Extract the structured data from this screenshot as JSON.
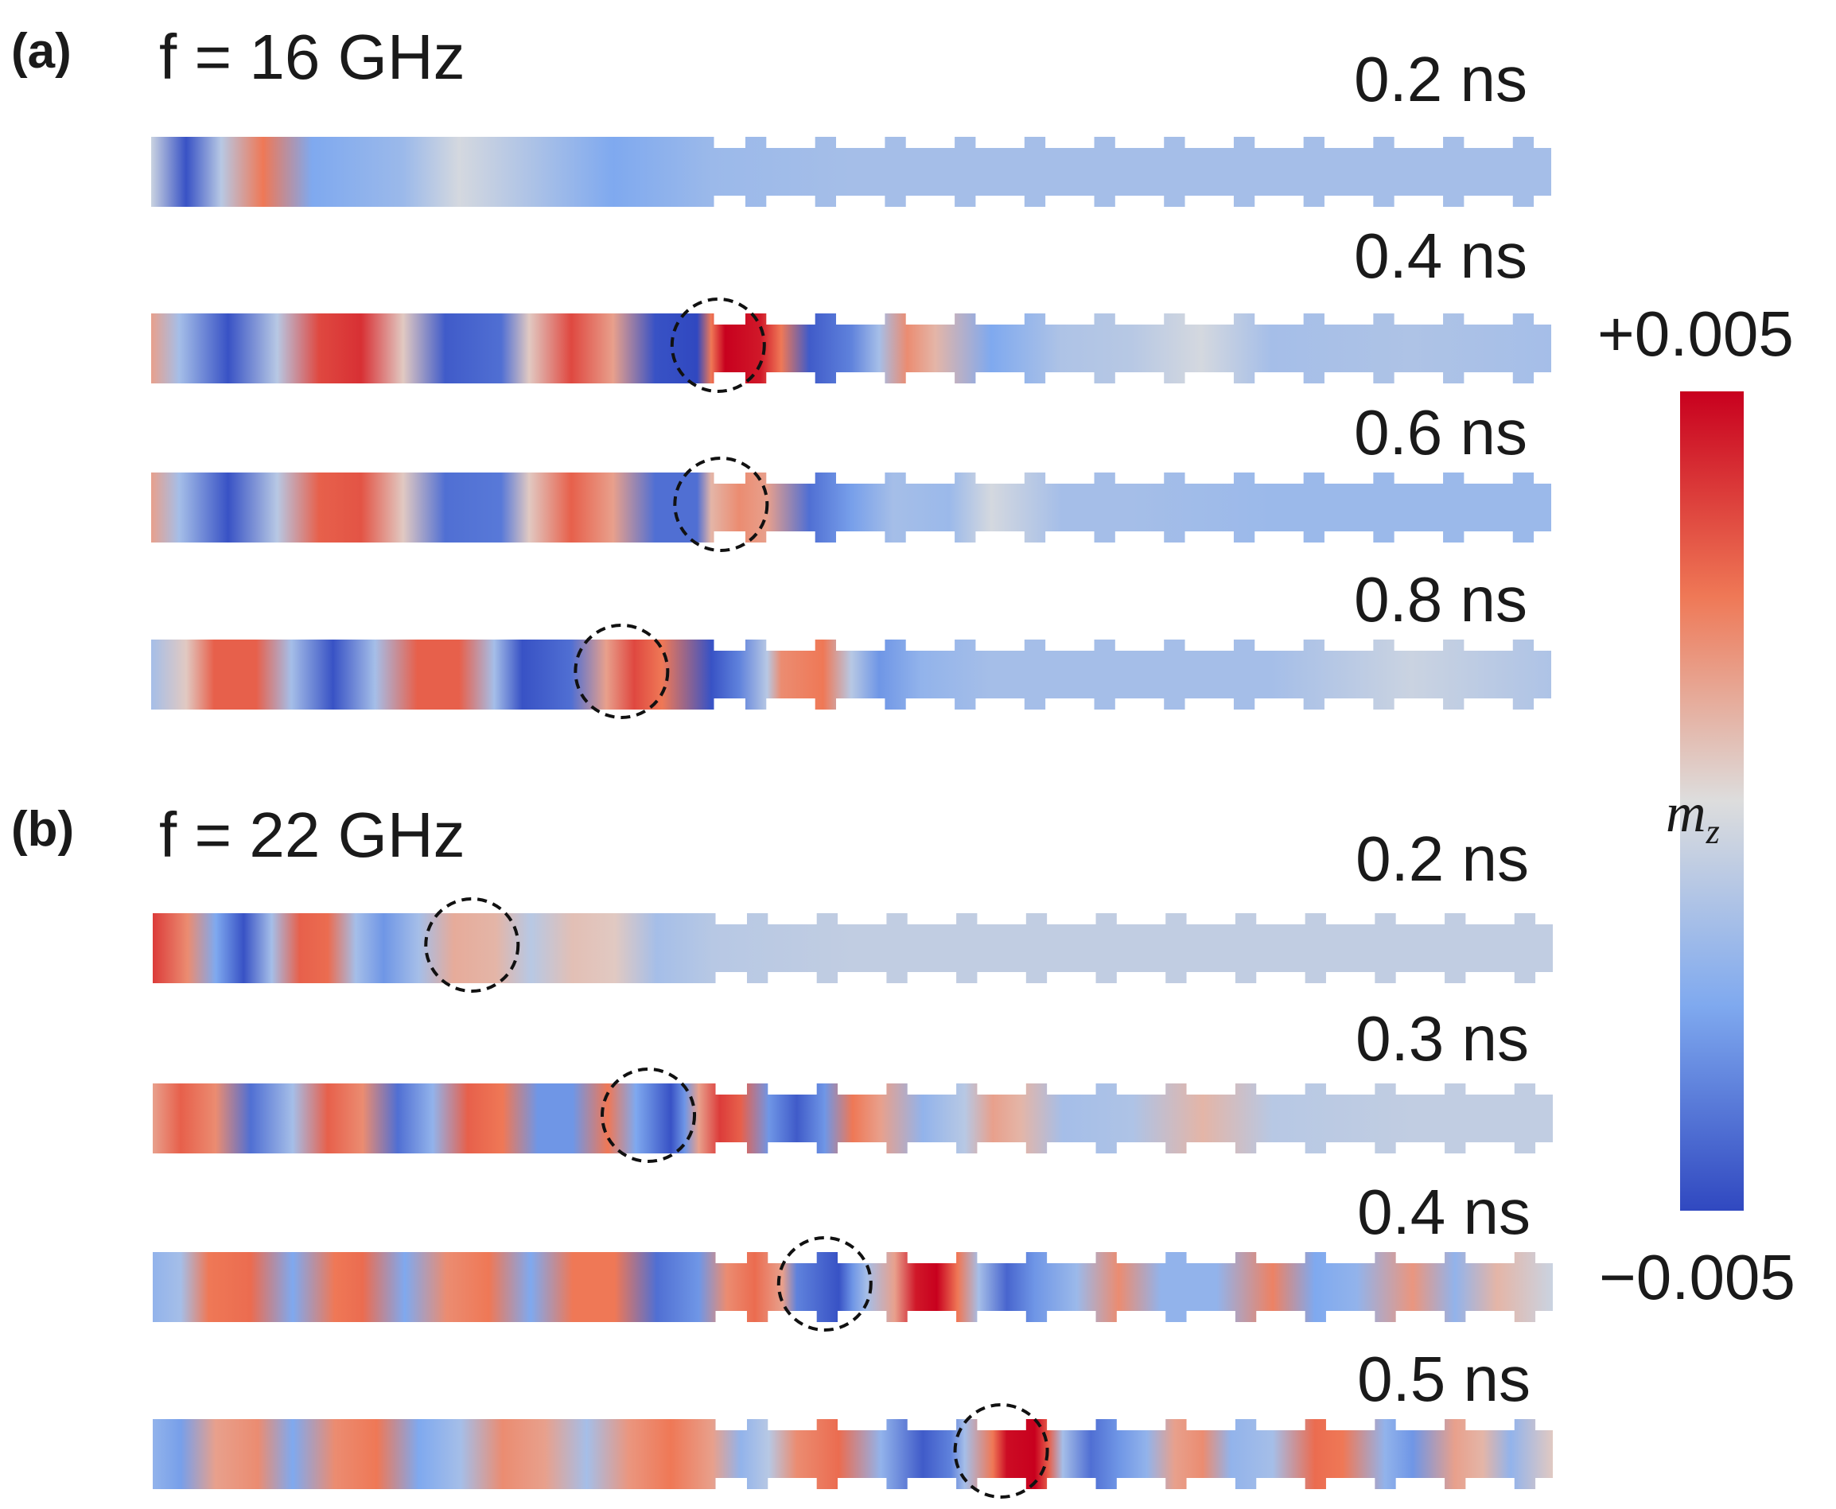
{
  "panels": [
    {
      "letter": "(a)",
      "frequency_label": "f = 16 GHz",
      "rows": [
        {
          "time": "0.2 ns",
          "mz_profile": [
            [
              0,
              -0.1
            ],
            [
              0.025,
              -0.95
            ],
            [
              0.05,
              -0.2
            ],
            [
              0.08,
              0.5
            ],
            [
              0.115,
              -0.5
            ],
            [
              0.18,
              -0.35
            ],
            [
              0.22,
              -0.05
            ],
            [
              0.27,
              -0.25
            ],
            [
              0.33,
              -0.5
            ],
            [
              0.4,
              -0.35
            ],
            [
              0.5,
              -0.3
            ],
            [
              1,
              -0.3
            ]
          ],
          "highlight": null
        },
        {
          "time": "0.4 ns",
          "mz_profile": [
            [
              0,
              0.3
            ],
            [
              0.02,
              -0.3
            ],
            [
              0.055,
              -0.95
            ],
            [
              0.09,
              -0.2
            ],
            [
              0.12,
              0.7
            ],
            [
              0.15,
              0.8
            ],
            [
              0.18,
              0.1
            ],
            [
              0.21,
              -0.9
            ],
            [
              0.25,
              -0.8
            ],
            [
              0.27,
              0.1
            ],
            [
              0.3,
              0.7
            ],
            [
              0.33,
              0.3
            ],
            [
              0.36,
              -0.95
            ],
            [
              0.39,
              -1
            ],
            [
              0.4,
              0.5
            ],
            [
              0.41,
              1
            ],
            [
              0.435,
              0.9
            ],
            [
              0.45,
              0.5
            ],
            [
              0.47,
              -0.9
            ],
            [
              0.5,
              -0.7
            ],
            [
              0.52,
              -0.3
            ],
            [
              0.54,
              0.4
            ],
            [
              0.56,
              0.2
            ],
            [
              0.6,
              -0.5
            ],
            [
              0.65,
              -0.25
            ],
            [
              0.7,
              -0.2
            ],
            [
              0.75,
              -0.05
            ],
            [
              0.8,
              -0.3
            ],
            [
              0.9,
              -0.25
            ],
            [
              1,
              -0.3
            ]
          ],
          "highlight": 0.405
        },
        {
          "time": "0.6 ns",
          "mz_profile": [
            [
              0,
              0.3
            ],
            [
              0.02,
              -0.3
            ],
            [
              0.055,
              -0.95
            ],
            [
              0.09,
              -0.2
            ],
            [
              0.12,
              0.6
            ],
            [
              0.15,
              0.65
            ],
            [
              0.18,
              0.1
            ],
            [
              0.21,
              -0.8
            ],
            [
              0.25,
              -0.75
            ],
            [
              0.27,
              0.1
            ],
            [
              0.3,
              0.6
            ],
            [
              0.33,
              0.3
            ],
            [
              0.36,
              -0.8
            ],
            [
              0.39,
              -0.8
            ],
            [
              0.4,
              0.2
            ],
            [
              0.42,
              0.4
            ],
            [
              0.44,
              0.3
            ],
            [
              0.47,
              -0.8
            ],
            [
              0.5,
              -0.55
            ],
            [
              0.53,
              -0.3
            ],
            [
              0.57,
              -0.35
            ],
            [
              0.6,
              -0.05
            ],
            [
              0.65,
              -0.3
            ],
            [
              0.7,
              -0.3
            ],
            [
              0.8,
              -0.35
            ],
            [
              1,
              -0.35
            ]
          ],
          "highlight": 0.407
        },
        {
          "time": "0.8 ns",
          "mz_profile": [
            [
              0,
              -0.3
            ],
            [
              0.025,
              0.1
            ],
            [
              0.045,
              0.6
            ],
            [
              0.075,
              0.6
            ],
            [
              0.1,
              -0.3
            ],
            [
              0.13,
              -0.95
            ],
            [
              0.16,
              -0.3
            ],
            [
              0.19,
              0.6
            ],
            [
              0.22,
              0.6
            ],
            [
              0.245,
              -0.3
            ],
            [
              0.265,
              -0.95
            ],
            [
              0.3,
              -0.8
            ],
            [
              0.325,
              0.3
            ],
            [
              0.345,
              0.7
            ],
            [
              0.365,
              0.5
            ],
            [
              0.4,
              -0.95
            ],
            [
              0.42,
              -0.7
            ],
            [
              0.44,
              -0.2
            ],
            [
              0.45,
              0.4
            ],
            [
              0.48,
              0.5
            ],
            [
              0.5,
              -0.2
            ],
            [
              0.52,
              -0.6
            ],
            [
              0.55,
              -0.4
            ],
            [
              0.6,
              -0.3
            ],
            [
              0.7,
              -0.3
            ],
            [
              0.8,
              -0.3
            ],
            [
              0.9,
              -0.1
            ],
            [
              1,
              -0.25
            ]
          ],
          "highlight": 0.336
        }
      ]
    },
    {
      "letter": "(b)",
      "frequency_label": "f = 22 GHz",
      "rows": [
        {
          "time": "0.2 ns",
          "mz_profile": [
            [
              0,
              0.75
            ],
            [
              0.025,
              0.4
            ],
            [
              0.045,
              -0.5
            ],
            [
              0.065,
              -0.95
            ],
            [
              0.085,
              -0.3
            ],
            [
              0.105,
              0.6
            ],
            [
              0.125,
              0.55
            ],
            [
              0.145,
              -0.3
            ],
            [
              0.165,
              -0.6
            ],
            [
              0.19,
              -0.3
            ],
            [
              0.215,
              0.25
            ],
            [
              0.245,
              0.2
            ],
            [
              0.27,
              -0.2
            ],
            [
              0.3,
              0.15
            ],
            [
              0.33,
              0.1
            ],
            [
              0.36,
              -0.3
            ],
            [
              0.4,
              -0.2
            ],
            [
              0.5,
              -0.15
            ],
            [
              1,
              -0.15
            ]
          ],
          "highlight": 0.228
        },
        {
          "time": "0.3 ns",
          "mz_profile": [
            [
              0,
              0.3
            ],
            [
              0.02,
              0.6
            ],
            [
              0.045,
              0.4
            ],
            [
              0.07,
              -0.8
            ],
            [
              0.1,
              -0.3
            ],
            [
              0.125,
              0.6
            ],
            [
              0.15,
              0.4
            ],
            [
              0.175,
              -0.8
            ],
            [
              0.2,
              -0.4
            ],
            [
              0.225,
              0.6
            ],
            [
              0.25,
              0.5
            ],
            [
              0.275,
              -0.6
            ],
            [
              0.3,
              -0.6
            ],
            [
              0.325,
              0.5
            ],
            [
              0.345,
              -0.5
            ],
            [
              0.37,
              -0.95
            ],
            [
              0.38,
              -0.6
            ],
            [
              0.39,
              0.3
            ],
            [
              0.405,
              0.75
            ],
            [
              0.42,
              0.6
            ],
            [
              0.44,
              -0.6
            ],
            [
              0.46,
              -0.9
            ],
            [
              0.48,
              -0.6
            ],
            [
              0.5,
              0.5
            ],
            [
              0.52,
              0.3
            ],
            [
              0.55,
              -0.4
            ],
            [
              0.58,
              -0.2
            ],
            [
              0.6,
              0.3
            ],
            [
              0.62,
              0.2
            ],
            [
              0.65,
              -0.3
            ],
            [
              0.7,
              -0.25
            ],
            [
              0.75,
              0.2
            ],
            [
              0.8,
              -0.2
            ],
            [
              0.9,
              -0.15
            ],
            [
              1,
              -0.15
            ]
          ],
          "highlight": 0.354
        },
        {
          "time": "0.4 ns",
          "mz_profile": [
            [
              0,
              -0.4
            ],
            [
              0.02,
              -0.3
            ],
            [
              0.04,
              0.5
            ],
            [
              0.07,
              0.55
            ],
            [
              0.1,
              -0.5
            ],
            [
              0.13,
              0.5
            ],
            [
              0.15,
              0.55
            ],
            [
              0.18,
              -0.5
            ],
            [
              0.21,
              0.4
            ],
            [
              0.24,
              0.5
            ],
            [
              0.27,
              -0.5
            ],
            [
              0.3,
              0.5
            ],
            [
              0.33,
              0.5
            ],
            [
              0.36,
              -0.8
            ],
            [
              0.39,
              -0.6
            ],
            [
              0.41,
              0.4
            ],
            [
              0.43,
              0.55
            ],
            [
              0.45,
              0.3
            ],
            [
              0.46,
              -0.7
            ],
            [
              0.49,
              -0.95
            ],
            [
              0.5,
              -0.6
            ],
            [
              0.51,
              -0.3
            ],
            [
              0.53,
              0.3
            ],
            [
              0.545,
              0.9
            ],
            [
              0.56,
              1
            ],
            [
              0.575,
              0.5
            ],
            [
              0.59,
              -0.3
            ],
            [
              0.61,
              -0.85
            ],
            [
              0.63,
              -0.6
            ],
            [
              0.66,
              -0.35
            ],
            [
              0.69,
              0.4
            ],
            [
              0.72,
              -0.4
            ],
            [
              0.76,
              -0.4
            ],
            [
              0.8,
              0.45
            ],
            [
              0.83,
              -0.5
            ],
            [
              0.86,
              -0.4
            ],
            [
              0.9,
              0.35
            ],
            [
              0.93,
              -0.4
            ],
            [
              0.96,
              0.2
            ],
            [
              1,
              -0.1
            ]
          ],
          "highlight": 0.48
        },
        {
          "time": "0.5 ns",
          "mz_profile": [
            [
              0,
              -0.4
            ],
            [
              0.02,
              -0.55
            ],
            [
              0.045,
              0.3
            ],
            [
              0.075,
              0.4
            ],
            [
              0.1,
              -0.5
            ],
            [
              0.13,
              0.4
            ],
            [
              0.16,
              0.5
            ],
            [
              0.19,
              -0.5
            ],
            [
              0.22,
              -0.3
            ],
            [
              0.25,
              0.4
            ],
            [
              0.28,
              0.3
            ],
            [
              0.31,
              -0.3
            ],
            [
              0.34,
              0.35
            ],
            [
              0.37,
              0.5
            ],
            [
              0.4,
              0.3
            ],
            [
              0.42,
              -0.4
            ],
            [
              0.44,
              -0.2
            ],
            [
              0.46,
              0.4
            ],
            [
              0.49,
              0.55
            ],
            [
              0.52,
              -0.4
            ],
            [
              0.55,
              -0.9
            ],
            [
              0.57,
              -0.7
            ],
            [
              0.58,
              -0.3
            ],
            [
              0.6,
              0.5
            ],
            [
              0.61,
              0.95
            ],
            [
              0.63,
              1
            ],
            [
              0.64,
              0.6
            ],
            [
              0.65,
              -0.3
            ],
            [
              0.67,
              -0.8
            ],
            [
              0.69,
              -0.6
            ],
            [
              0.71,
              -0.4
            ],
            [
              0.73,
              0.3
            ],
            [
              0.75,
              0.4
            ],
            [
              0.77,
              -0.4
            ],
            [
              0.8,
              -0.3
            ],
            [
              0.83,
              0.55
            ],
            [
              0.85,
              0.5
            ],
            [
              0.88,
              -0.4
            ],
            [
              0.9,
              -0.6
            ],
            [
              0.93,
              0.3
            ],
            [
              0.95,
              0.2
            ],
            [
              0.97,
              -0.4
            ],
            [
              1,
              0.1
            ]
          ],
          "highlight": 0.606
        }
      ]
    }
  ],
  "colorbar": {
    "max_label": "+0.005",
    "min_label": "−0.005",
    "variable": "m",
    "variable_subscript": "z",
    "colors": {
      "max": "#c8001e",
      "upper_mid": "#ef7856",
      "mid": "#dddddd",
      "lower_mid": "#7fa9ef",
      "min": "#3048c0"
    }
  }
}
